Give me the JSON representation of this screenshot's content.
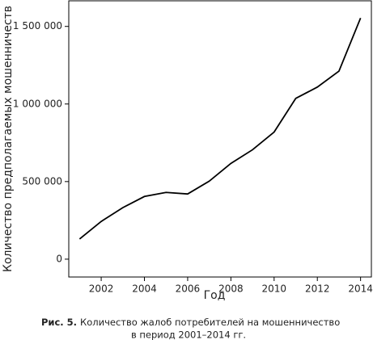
{
  "chart_data": {
    "type": "line",
    "x_label": "Год",
    "y_label": "Количество предполагаемых мошенничеств",
    "x": [
      2001,
      2002,
      2003,
      2004,
      2005,
      2006,
      2007,
      2008,
      2009,
      2010,
      2011,
      2012,
      2013,
      2014
    ],
    "series": [
      {
        "color": "#000000",
        "values": [
          130000,
          243000,
          332000,
          404000,
          430000,
          420000,
          503000,
          617000,
          705000,
          819000,
          1036000,
          1109000,
          1212000,
          1554000
        ]
      }
    ],
    "xlim": [
      2000.5,
      2014.5
    ],
    "ylim": [
      -115000,
      1665000
    ],
    "xticks": [
      2002,
      2004,
      2006,
      2008,
      2010,
      2012,
      2014
    ],
    "yticks": [
      0,
      {
        "value": 500000,
        "label": "500 000"
      },
      {
        "value": 1000000,
        "label": "1 000 000"
      },
      {
        "value": 1500000,
        "label": "1 500 000"
      }
    ],
    "caption": {
      "label": "Рис. 5.",
      "lines": [
        "Количество жалоб потребителей на мошенничество",
        "в период 2001–2014 гг."
      ]
    }
  }
}
